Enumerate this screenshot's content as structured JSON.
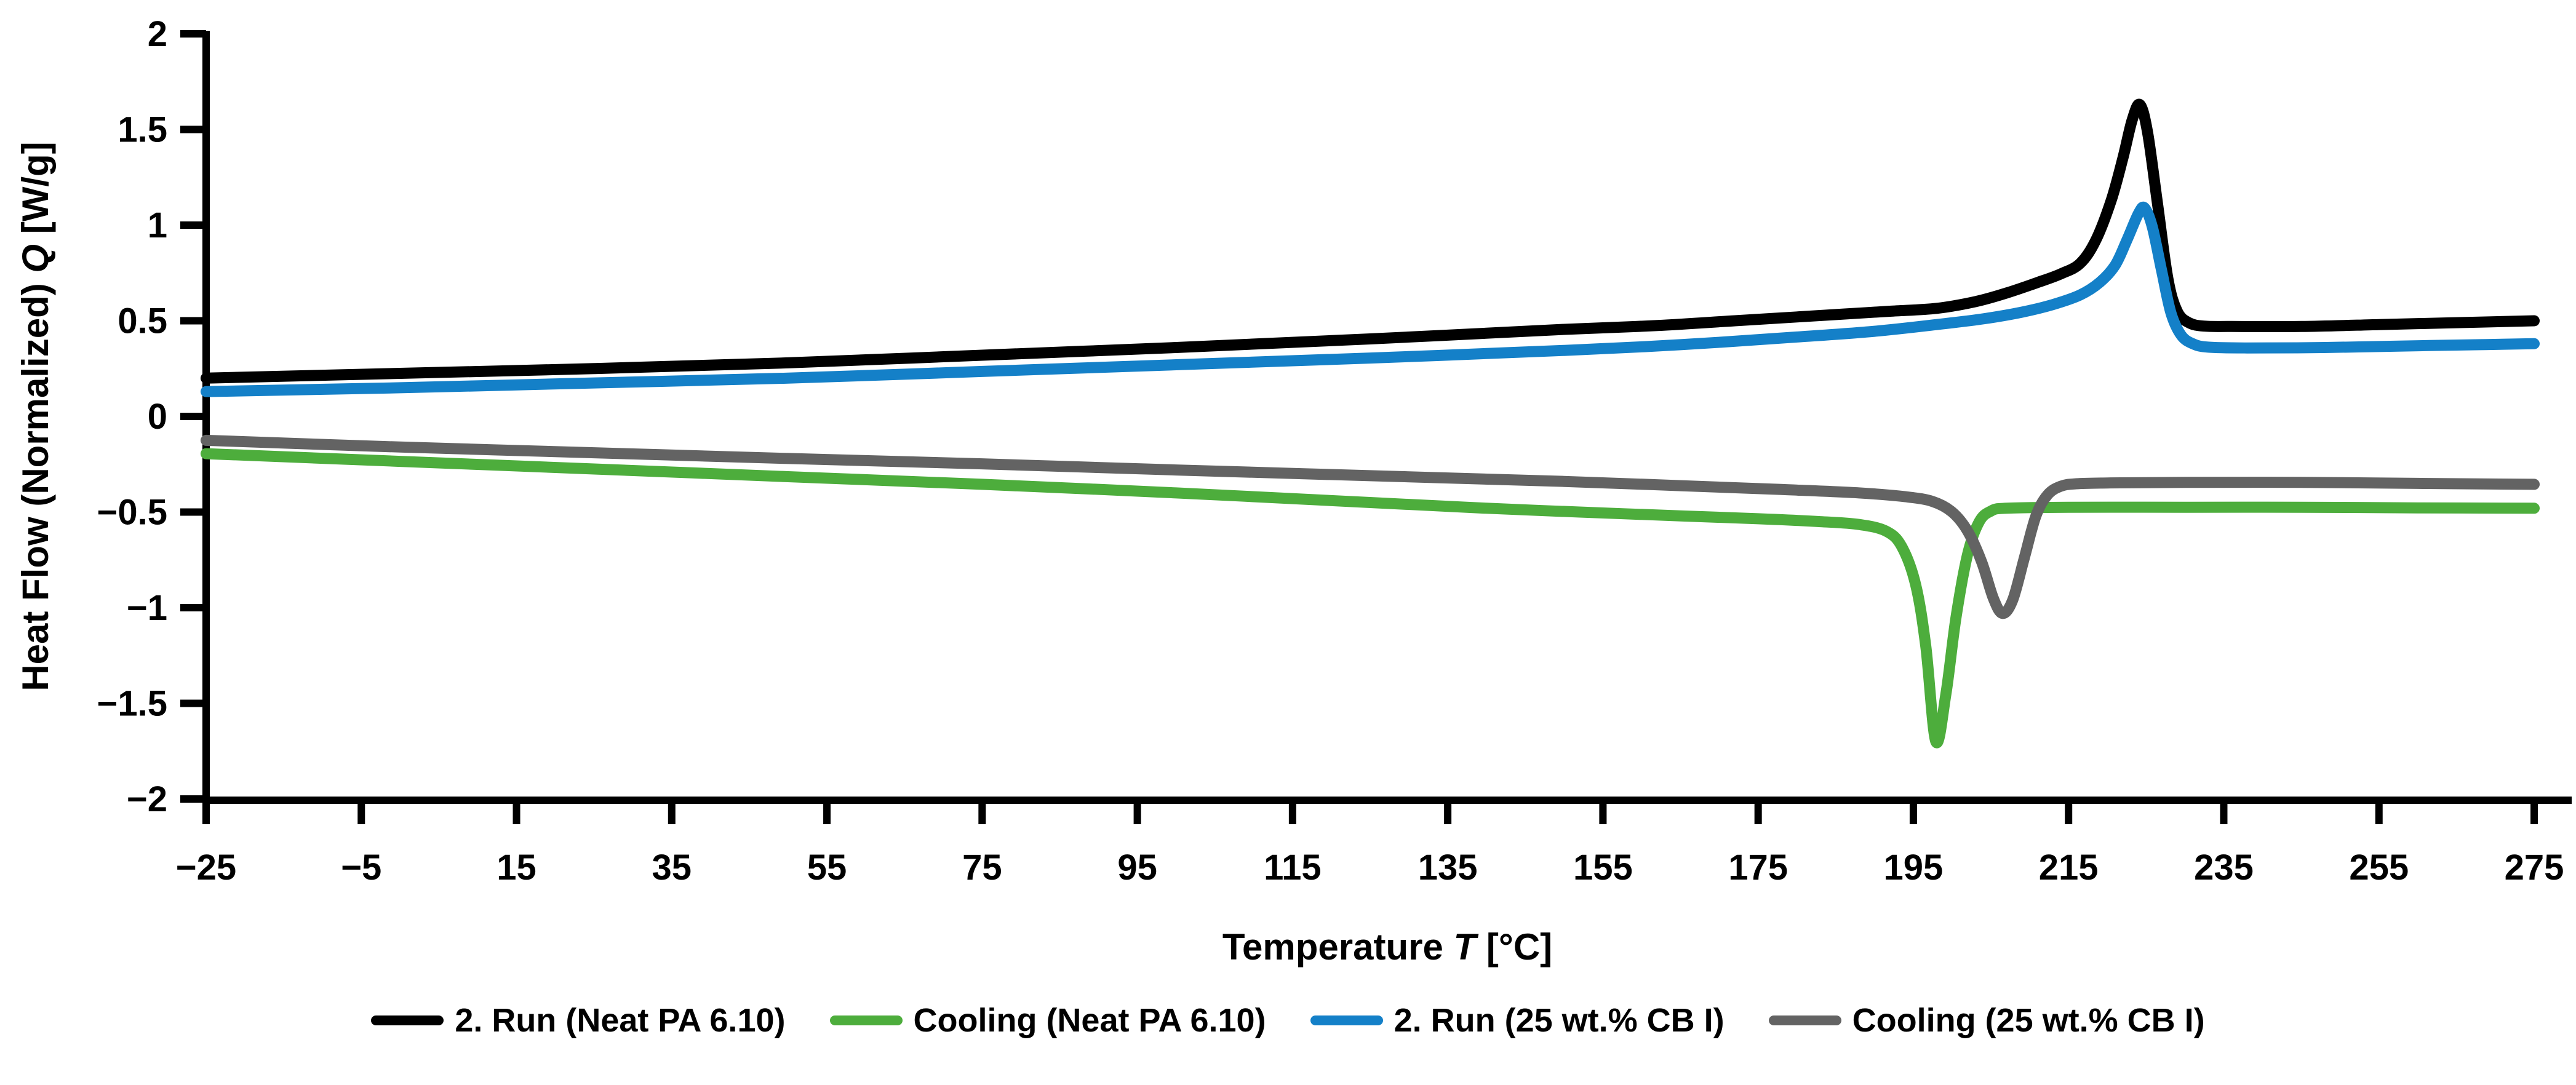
{
  "chart_data": {
    "type": "line",
    "title": "",
    "grid": false,
    "legend_position": "bottom",
    "x_axis": {
      "label_prefix": "Temperature ",
      "label_symbol": "T",
      "label_suffix": " [°C]",
      "min": -25,
      "max": 275,
      "ticks": [
        -25,
        -5,
        15,
        35,
        55,
        75,
        95,
        115,
        135,
        155,
        175,
        195,
        215,
        235,
        255,
        275
      ]
    },
    "y_axis": {
      "label_prefix": "Heat Flow (Normalized) ",
      "label_symbol": "Q",
      "label_suffix": " [W/g]",
      "min": -2,
      "max": 2,
      "ticks": [
        2,
        1.5,
        1,
        0.5,
        0,
        -0.5,
        -1,
        -1.5,
        -2
      ]
    },
    "series": [
      {
        "name": "2. Run (Neat PA 6.10)",
        "color": "#000000",
        "peak": {
          "T": 224,
          "Q": 1.63
        },
        "points": [
          [
            -25,
            0.2
          ],
          [
            0,
            0.225
          ],
          [
            25,
            0.25
          ],
          [
            50,
            0.28
          ],
          [
            75,
            0.32
          ],
          [
            100,
            0.36
          ],
          [
            125,
            0.405
          ],
          [
            150,
            0.455
          ],
          [
            162,
            0.475
          ],
          [
            172,
            0.5
          ],
          [
            180,
            0.52
          ],
          [
            186,
            0.535
          ],
          [
            192,
            0.55
          ],
          [
            198,
            0.565
          ],
          [
            203,
            0.6
          ],
          [
            207,
            0.645
          ],
          [
            211,
            0.7
          ],
          [
            214,
            0.745
          ],
          [
            216.5,
            0.8
          ],
          [
            218.5,
            0.92
          ],
          [
            220.5,
            1.13
          ],
          [
            222,
            1.35
          ],
          [
            223.2,
            1.55
          ],
          [
            224.2,
            1.63
          ],
          [
            225.2,
            1.48
          ],
          [
            226.5,
            1.1
          ],
          [
            227.8,
            0.72
          ],
          [
            229,
            0.55
          ],
          [
            230.5,
            0.49
          ],
          [
            232.5,
            0.472
          ],
          [
            236,
            0.47
          ],
          [
            245,
            0.47
          ],
          [
            255,
            0.48
          ],
          [
            265,
            0.49
          ],
          [
            275,
            0.5
          ]
        ]
      },
      {
        "name": "Cooling (Neat PA 6.10)",
        "color": "#4dad3c",
        "peak": {
          "T": 198,
          "Q": -1.7
        },
        "points": [
          [
            -25,
            -0.195
          ],
          [
            0,
            -0.235
          ],
          [
            25,
            -0.275
          ],
          [
            50,
            -0.315
          ],
          [
            75,
            -0.355
          ],
          [
            100,
            -0.4
          ],
          [
            125,
            -0.45
          ],
          [
            140,
            -0.48
          ],
          [
            152,
            -0.5
          ],
          [
            165,
            -0.52
          ],
          [
            175,
            -0.535
          ],
          [
            183,
            -0.55
          ],
          [
            188,
            -0.565
          ],
          [
            191.5,
            -0.6
          ],
          [
            193.5,
            -0.68
          ],
          [
            195.3,
            -0.88
          ],
          [
            196.6,
            -1.2
          ],
          [
            197.9,
            -1.7
          ],
          [
            199.2,
            -1.45
          ],
          [
            200.5,
            -1.05
          ],
          [
            202,
            -0.72
          ],
          [
            203.5,
            -0.55
          ],
          [
            205,
            -0.495
          ],
          [
            207,
            -0.48
          ],
          [
            215,
            -0.475
          ],
          [
            230,
            -0.475
          ],
          [
            245,
            -0.475
          ],
          [
            260,
            -0.478
          ],
          [
            275,
            -0.48
          ]
        ]
      },
      {
        "name": "2. Run (25 wt.% CB I)",
        "color": "#1480c8",
        "peak": {
          "T": 224.6,
          "Q": 1.09
        },
        "points": [
          [
            -25,
            0.13
          ],
          [
            0,
            0.15
          ],
          [
            25,
            0.175
          ],
          [
            50,
            0.2
          ],
          [
            75,
            0.235
          ],
          [
            100,
            0.27
          ],
          [
            125,
            0.305
          ],
          [
            150,
            0.345
          ],
          [
            165,
            0.375
          ],
          [
            180,
            0.415
          ],
          [
            190,
            0.445
          ],
          [
            198,
            0.48
          ],
          [
            204,
            0.51
          ],
          [
            209,
            0.545
          ],
          [
            213,
            0.585
          ],
          [
            216.5,
            0.635
          ],
          [
            219,
            0.7
          ],
          [
            221,
            0.79
          ],
          [
            222.5,
            0.92
          ],
          [
            224,
            1.06
          ],
          [
            224.8,
            1.09
          ],
          [
            225.8,
            0.99
          ],
          [
            227,
            0.76
          ],
          [
            228.2,
            0.54
          ],
          [
            229.5,
            0.425
          ],
          [
            231,
            0.38
          ],
          [
            233,
            0.362
          ],
          [
            238,
            0.358
          ],
          [
            248,
            0.36
          ],
          [
            258,
            0.368
          ],
          [
            268,
            0.375
          ],
          [
            275,
            0.38
          ]
        ]
      },
      {
        "name": "Cooling (25 wt.% CB I)",
        "color": "#636363",
        "peak": {
          "T": 206.5,
          "Q": -1.03
        },
        "points": [
          [
            -25,
            -0.125
          ],
          [
            0,
            -0.16
          ],
          [
            25,
            -0.19
          ],
          [
            50,
            -0.22
          ],
          [
            75,
            -0.248
          ],
          [
            100,
            -0.28
          ],
          [
            125,
            -0.31
          ],
          [
            150,
            -0.34
          ],
          [
            165,
            -0.362
          ],
          [
            178,
            -0.382
          ],
          [
            188,
            -0.4
          ],
          [
            194,
            -0.42
          ],
          [
            197.5,
            -0.445
          ],
          [
            200,
            -0.5
          ],
          [
            202,
            -0.6
          ],
          [
            203.8,
            -0.76
          ],
          [
            205.3,
            -0.95
          ],
          [
            206.5,
            -1.03
          ],
          [
            207.8,
            -0.96
          ],
          [
            209.3,
            -0.74
          ],
          [
            210.8,
            -0.52
          ],
          [
            212.3,
            -0.41
          ],
          [
            214,
            -0.365
          ],
          [
            216,
            -0.352
          ],
          [
            220,
            -0.348
          ],
          [
            230,
            -0.345
          ],
          [
            245,
            -0.345
          ],
          [
            260,
            -0.35
          ],
          [
            275,
            -0.355
          ]
        ]
      }
    ]
  },
  "legend": {
    "items": [
      {
        "label": "2. Run (Neat PA 6.10)"
      },
      {
        "label": "Cooling (Neat PA 6.10)"
      },
      {
        "label": "2. Run (25 wt.% CB I)"
      },
      {
        "label": "Cooling (25 wt.% CB I)"
      }
    ]
  }
}
